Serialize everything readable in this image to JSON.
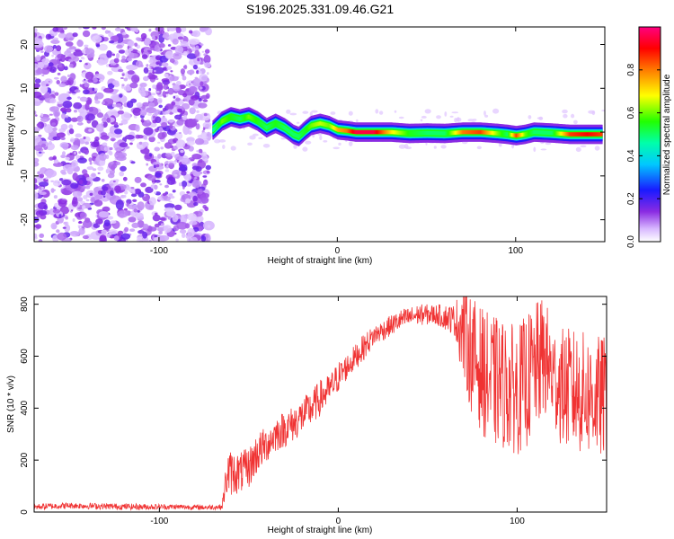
{
  "title": "S196.2025.331.09.46.G21",
  "chart_data": [
    {
      "type": "heatmap",
      "xlabel": "Height of straight line (km)",
      "ylabel": "Frequency (Hz)",
      "xlim": [
        -170,
        150
      ],
      "ylim": [
        -25,
        24
      ],
      "x_ticks": [
        -100,
        0,
        100
      ],
      "x_tick_labels": [
        "-100",
        "0",
        "100"
      ],
      "y_ticks": [
        -20,
        -10,
        0,
        10,
        20
      ],
      "y_tick_labels": [
        "-20",
        "-10",
        "0",
        "10",
        "20"
      ],
      "noise_region_x": [
        -170,
        -72
      ],
      "signal_trace": {
        "x": [
          -70,
          -65,
          -60,
          -55,
          -50,
          -45,
          -40,
          -35,
          -30,
          -25,
          -22,
          -18,
          -15,
          -10,
          -5,
          0,
          5,
          10,
          20,
          30,
          40,
          50,
          60,
          70,
          80,
          90,
          95,
          100,
          105,
          110,
          120,
          130,
          140,
          148
        ],
        "y": [
          0.5,
          2.5,
          3.5,
          3.0,
          3.5,
          2.5,
          1.0,
          2.0,
          1.0,
          -0.5,
          -1.0,
          0.5,
          1.5,
          2.0,
          1.5,
          0.5,
          0.3,
          0.0,
          0.0,
          0.0,
          -0.3,
          -0.2,
          -0.3,
          0.0,
          0.0,
          -0.3,
          -0.5,
          -0.8,
          -0.5,
          0.0,
          -0.2,
          -0.5,
          -0.5,
          -0.5
        ],
        "amp": [
          0.45,
          0.6,
          0.55,
          0.5,
          0.6,
          0.55,
          0.5,
          0.55,
          0.5,
          0.5,
          0.5,
          0.55,
          0.6,
          0.65,
          0.6,
          0.75,
          0.8,
          0.95,
          0.95,
          0.7,
          0.55,
          0.5,
          0.5,
          0.8,
          0.85,
          0.6,
          0.5,
          0.85,
          0.6,
          0.5,
          0.5,
          0.85,
          0.9,
          0.85
        ]
      },
      "colorbar": {
        "label": "Normalized spectral amplitude",
        "range": [
          0,
          1
        ],
        "ticks": [
          0.0,
          0.2,
          0.4,
          0.6,
          0.8
        ],
        "tick_labels": [
          "0.0",
          "0.2",
          "0.4",
          "0.6",
          "0.8"
        ]
      }
    },
    {
      "type": "line",
      "xlabel": "Height of straight line (km)",
      "ylabel": "SNR (10 * v/v)",
      "xlim": [
        -170,
        150
      ],
      "ylim": [
        0,
        830
      ],
      "x_ticks": [
        -100,
        0,
        100
      ],
      "x_tick_labels": [
        "-100",
        "0",
        "100"
      ],
      "y_ticks": [
        0,
        200,
        400,
        600,
        800
      ],
      "y_tick_labels": [
        "0",
        "200",
        "400",
        "600",
        "800"
      ],
      "series": [
        {
          "name": "SNR",
          "color": "#f03232",
          "x": [
            -170,
            -150,
            -130,
            -110,
            -90,
            -75,
            -65,
            -62,
            -55,
            -50,
            -45,
            -40,
            -35,
            -30,
            -25,
            -20,
            -15,
            -10,
            -5,
            0,
            5,
            10,
            15,
            20,
            25,
            30,
            35,
            40,
            45,
            50,
            55,
            60,
            65,
            70,
            75,
            80,
            85,
            90,
            95,
            100,
            105,
            110,
            115,
            120,
            125,
            130,
            135,
            140,
            145,
            150
          ],
          "mean": [
            20,
            25,
            22,
            20,
            20,
            18,
            20,
            150,
            150,
            170,
            230,
            260,
            300,
            320,
            340,
            370,
            400,
            440,
            470,
            520,
            560,
            600,
            640,
            680,
            700,
            720,
            740,
            750,
            760,
            760,
            760,
            750,
            740,
            700,
            600,
            550,
            500,
            500,
            480,
            470,
            500,
            550,
            600,
            520,
            480,
            470,
            460,
            450,
            440,
            440
          ],
          "spread": [
            12,
            12,
            12,
            12,
            10,
            10,
            10,
            90,
            80,
            80,
            80,
            70,
            70,
            70,
            70,
            70,
            70,
            70,
            60,
            60,
            50,
            50,
            50,
            40,
            40,
            40,
            40,
            40,
            40,
            40,
            40,
            50,
            60,
            200,
            230,
            240,
            260,
            250,
            250,
            250,
            260,
            250,
            240,
            200,
            230,
            240,
            240,
            240,
            240,
            240
          ]
        }
      ]
    }
  ]
}
